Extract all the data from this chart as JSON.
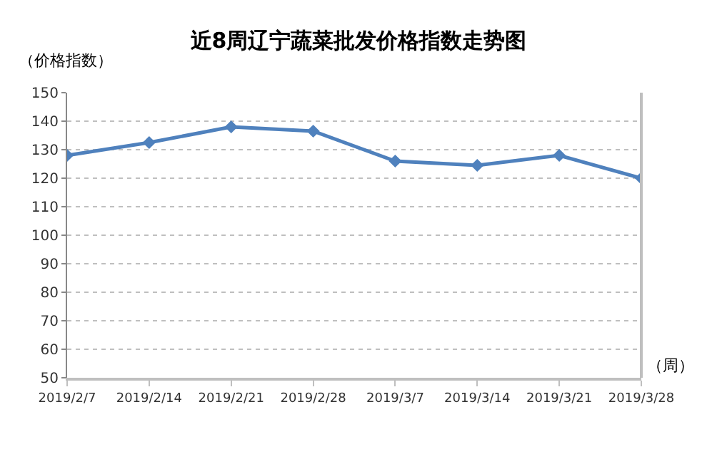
{
  "chart_data": {
    "type": "line",
    "title": "近8周辽宁蔬菜批发价格指数走势图",
    "ylabel": "（价格指数）",
    "xlabel": "（周）",
    "categories": [
      "2019/2/7",
      "2019/2/14",
      "2019/2/21",
      "2019/2/28",
      "2019/3/7",
      "2019/3/14",
      "2019/3/21",
      "2019/3/28"
    ],
    "series": [
      {
        "color": "#4f81bd",
        "values": [
          128,
          132.5,
          138,
          136.5,
          126,
          124.5,
          128,
          120
        ]
      }
    ],
    "ylim": [
      50,
      150
    ],
    "yticks": [
      50,
      60,
      70,
      80,
      90,
      100,
      110,
      120,
      130,
      140,
      150
    ],
    "grid": "y",
    "marker": "diamond",
    "line_style": "solid"
  }
}
